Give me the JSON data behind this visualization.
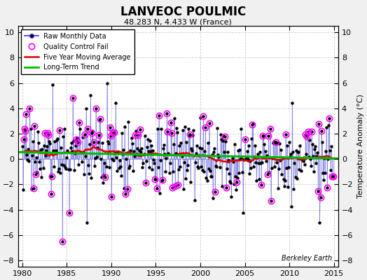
{
  "title": "LANVEOC POULMIC",
  "subtitle": "48.283 N, 4.433 W (France)",
  "ylabel": "Temperature Anomaly (°C)",
  "watermark": "Berkeley Earth",
  "xlim": [
    1979.5,
    2015.5
  ],
  "ylim": [
    -8.5,
    10.5
  ],
  "yticks": [
    -8,
    -6,
    -4,
    -2,
    0,
    2,
    4,
    6,
    8,
    10
  ],
  "xticks": [
    1980,
    1985,
    1990,
    1995,
    2000,
    2005,
    2010,
    2015
  ],
  "bg_color": "#f0f0f0",
  "plot_bg_color": "#ffffff",
  "line_color": "#3333cc",
  "ma_color": "#dd0000",
  "trend_color": "#00bb00",
  "qc_color": "#ff00ff",
  "seed": 17
}
